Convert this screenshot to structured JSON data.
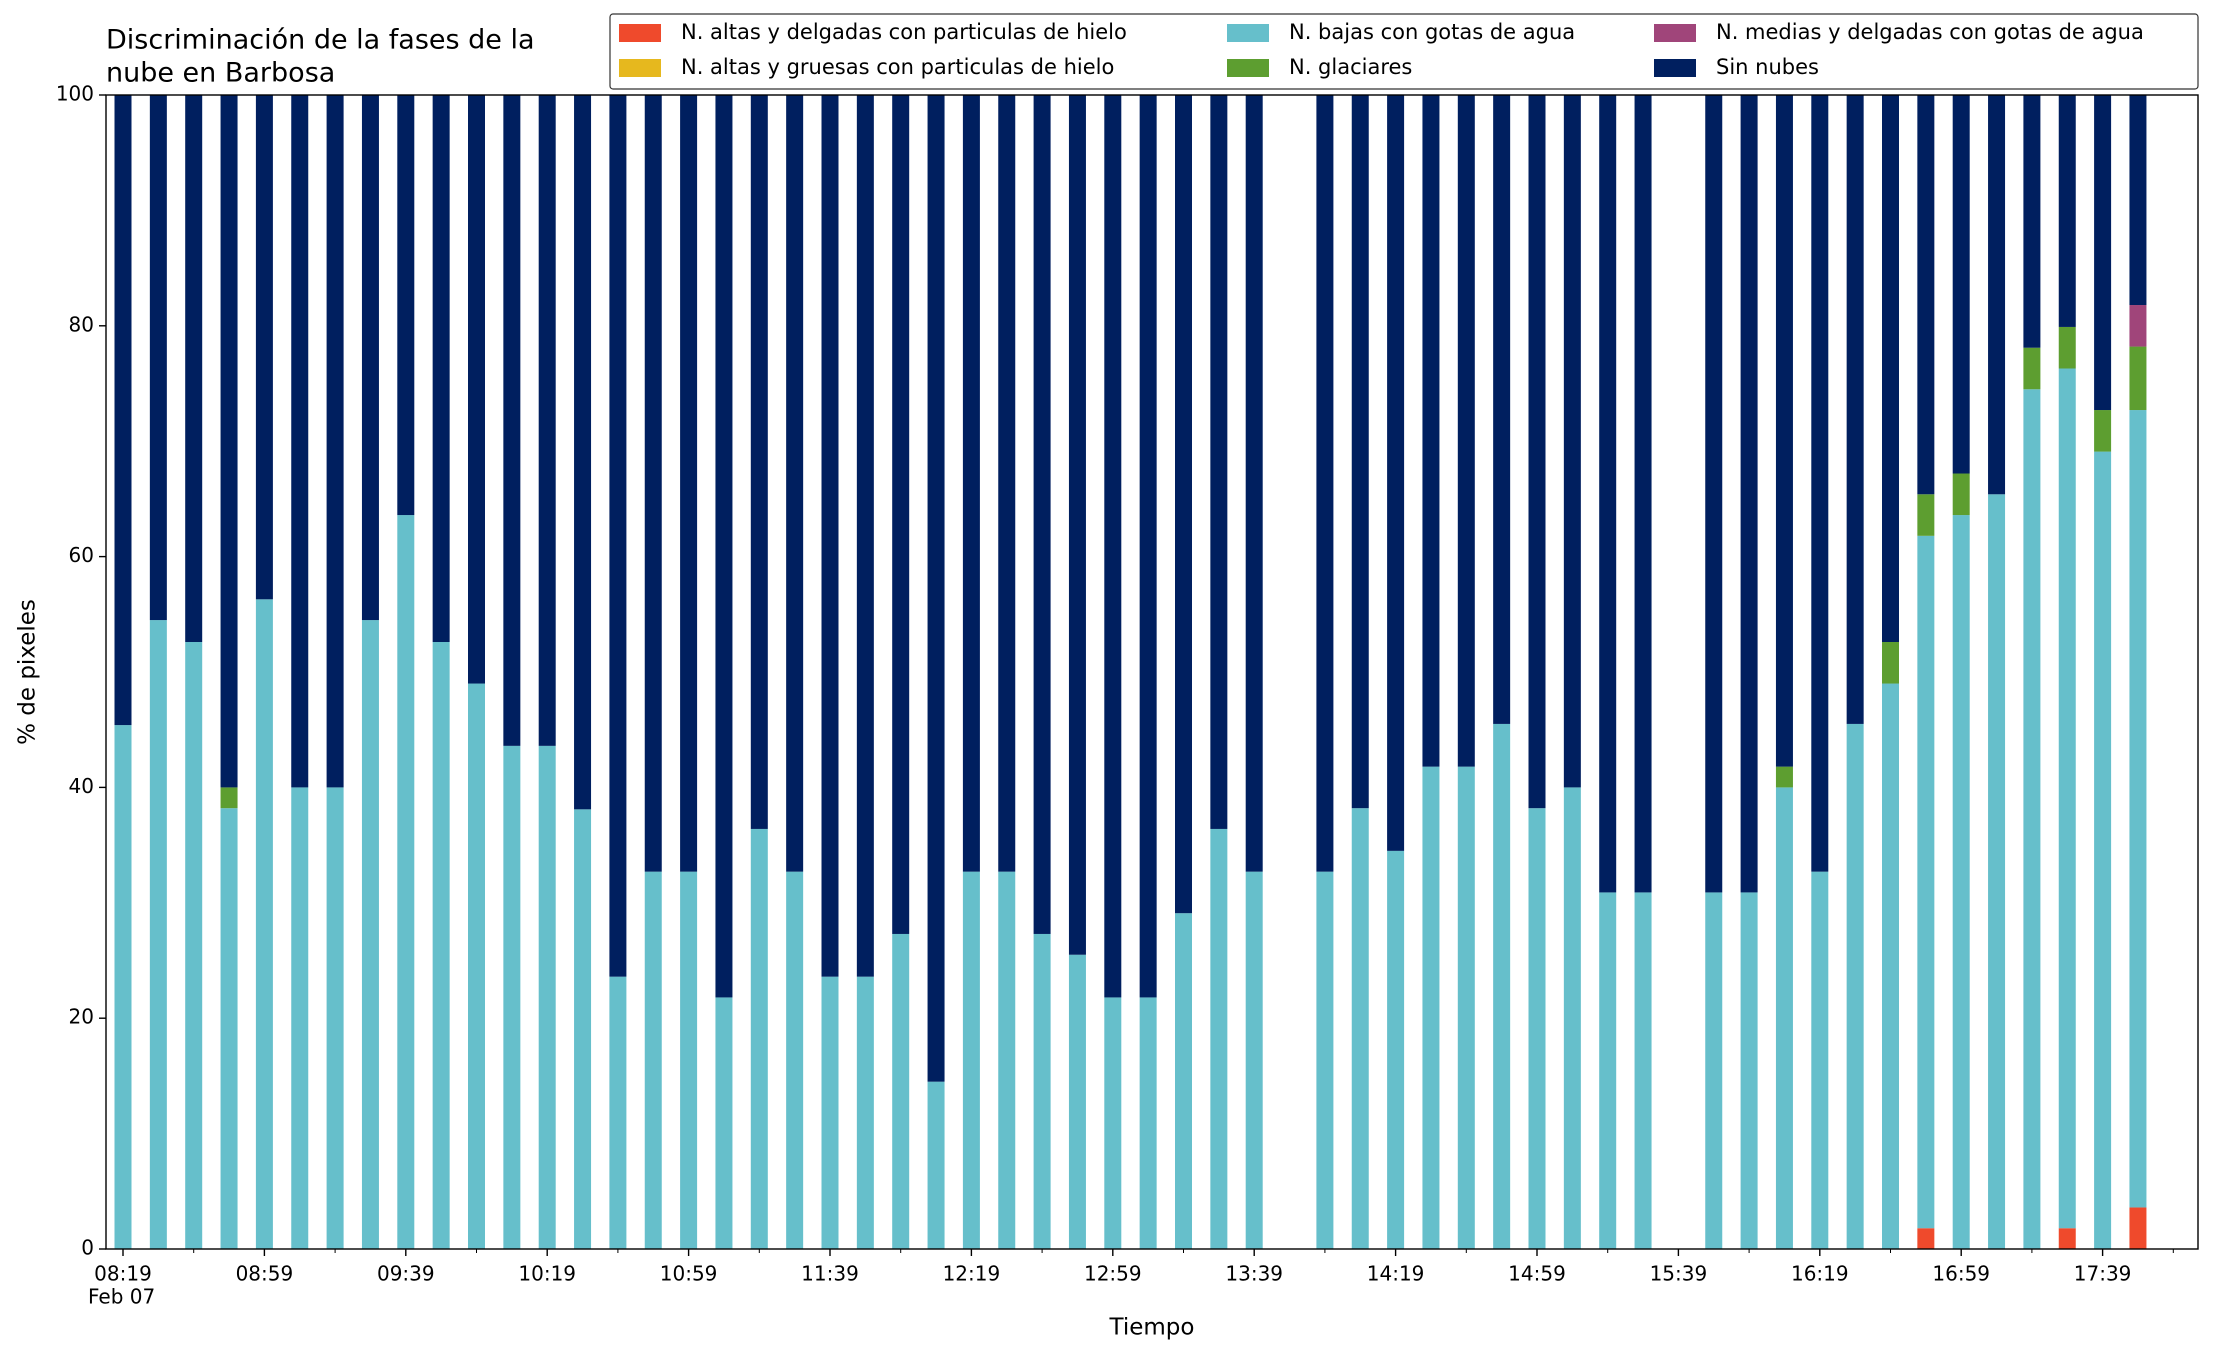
{
  "chart_data": {
    "type": "stacked_bar",
    "title": [
      "Discriminación de la fases de la",
      "nube en Barbosa"
    ],
    "x_label": "Tiempo",
    "y_label": "% de pixeles",
    "x_sublabel": "Feb 07",
    "categories": [
      "08:19",
      null,
      null,
      null,
      "08:59",
      null,
      null,
      null,
      "09:39",
      null,
      null,
      null,
      "10:19",
      null,
      null,
      null,
      "10:59",
      null,
      null,
      null,
      "11:39",
      null,
      null,
      null,
      "12:19",
      null,
      null,
      null,
      "12:59",
      null,
      null,
      null,
      "13:39",
      null,
      null,
      null,
      "14:19",
      null,
      null,
      null,
      "14:59",
      null,
      null,
      null,
      "15:39",
      null,
      null,
      null,
      "16:19",
      null,
      null,
      null,
      "16:59",
      null,
      null,
      null,
      "17:39",
      null,
      null
    ],
    "series": [
      {
        "name": "N. altas y delgadas con particulas de hielo",
        "color": "#ef4a2c",
        "values": [
          0,
          0,
          0,
          0,
          0,
          0,
          0,
          0,
          0,
          0,
          0,
          0,
          0,
          0,
          0,
          0,
          0,
          0,
          0,
          0,
          0,
          0,
          0,
          0,
          0,
          0,
          0,
          0,
          0,
          0,
          0,
          0,
          0,
          null,
          0,
          0,
          0,
          0,
          0,
          0,
          0,
          0,
          0,
          0,
          null,
          0,
          0,
          0,
          0,
          0,
          0,
          1.8,
          0,
          0,
          0,
          1.8,
          0,
          3.6,
          null
        ]
      },
      {
        "name": "N. altas y gruesas con particulas de hielo",
        "color": "#e6b81e",
        "values": [
          0,
          0,
          0,
          0,
          0,
          0,
          0,
          0,
          0,
          0,
          0,
          0,
          0,
          0,
          0,
          0,
          0,
          0,
          0,
          0,
          0,
          0,
          0,
          0,
          0,
          0,
          0,
          0,
          0,
          0,
          0,
          0,
          0,
          null,
          0,
          0,
          0,
          0,
          0,
          0,
          0,
          0,
          0,
          0,
          null,
          0,
          0,
          0,
          0,
          0,
          0,
          0,
          0,
          0,
          0,
          0,
          0,
          0,
          null
        ]
      },
      {
        "name": "N. bajas con gotas de agua",
        "color": "#66bfcb",
        "values": [
          45.4,
          54.5,
          52.6,
          38.2,
          56.3,
          40,
          40,
          54.5,
          63.6,
          52.6,
          49,
          43.6,
          43.6,
          38.1,
          23.6,
          32.7,
          32.7,
          21.8,
          36.4,
          32.7,
          23.6,
          23.6,
          27.3,
          14.5,
          32.7,
          32.7,
          27.3,
          25.5,
          21.8,
          21.8,
          29.1,
          36.4,
          32.7,
          null,
          32.7,
          38.2,
          34.5,
          41.8,
          41.8,
          45.5,
          38.2,
          40,
          30.9,
          30.9,
          null,
          30.9,
          30.9,
          40,
          32.7,
          45.5,
          49,
          60,
          63.6,
          65.4,
          74.5,
          74.5,
          69.1,
          69.1,
          null
        ]
      },
      {
        "name": "N. glaciares",
        "color": "#5d9e30",
        "values": [
          0,
          0,
          0,
          1.8,
          0,
          0,
          0,
          0,
          0,
          0,
          0,
          0,
          0,
          0,
          0,
          0,
          0,
          0,
          0,
          0,
          0,
          0,
          0,
          0,
          0,
          0,
          0,
          0,
          0,
          0,
          0,
          0,
          0,
          null,
          0,
          0,
          0,
          0,
          0,
          0,
          0,
          0,
          0,
          0,
          null,
          0,
          0,
          1.8,
          0,
          0,
          3.6,
          3.6,
          3.6,
          0,
          3.6,
          3.6,
          3.6,
          5.5,
          null
        ]
      },
      {
        "name": "N. medias y delgadas con gotas de agua",
        "color": "#a0457a",
        "values": [
          0,
          0,
          0,
          0,
          0,
          0,
          0,
          0,
          0,
          0,
          0,
          0,
          0,
          0,
          0,
          0,
          0,
          0,
          0,
          0,
          0,
          0,
          0,
          0,
          0,
          0,
          0,
          0,
          0,
          0,
          0,
          0,
          0,
          null,
          0,
          0,
          0,
          0,
          0,
          0,
          0,
          0,
          0,
          0,
          null,
          0,
          0,
          0,
          0,
          0,
          0,
          0,
          0,
          0,
          0,
          0,
          0,
          3.6,
          null
        ]
      },
      {
        "name": "Sin nubes",
        "color": "#001f5f",
        "values": [
          54.6,
          45.5,
          47.4,
          60,
          43.7,
          60,
          60,
          45.5,
          36.4,
          47.4,
          51,
          56.4,
          56.4,
          61.9,
          76.4,
          67.3,
          67.3,
          78.2,
          63.6,
          67.3,
          76.4,
          76.4,
          72.7,
          85.5,
          67.3,
          67.3,
          72.7,
          74.5,
          78.2,
          78.2,
          70.9,
          63.6,
          67.3,
          null,
          67.3,
          61.8,
          65.5,
          58.2,
          58.2,
          54.5,
          61.8,
          60,
          69.1,
          69.1,
          null,
          69.1,
          69.1,
          58.2,
          67.3,
          54.5,
          47.4,
          34.6,
          32.8,
          34.6,
          21.9,
          20.1,
          27.3,
          18.2,
          null
        ]
      }
    ],
    "ylim": [
      0,
      100
    ],
    "yticks": [
      0,
      20,
      40,
      60,
      80,
      100
    ],
    "grid": false,
    "legend": "upper right"
  }
}
